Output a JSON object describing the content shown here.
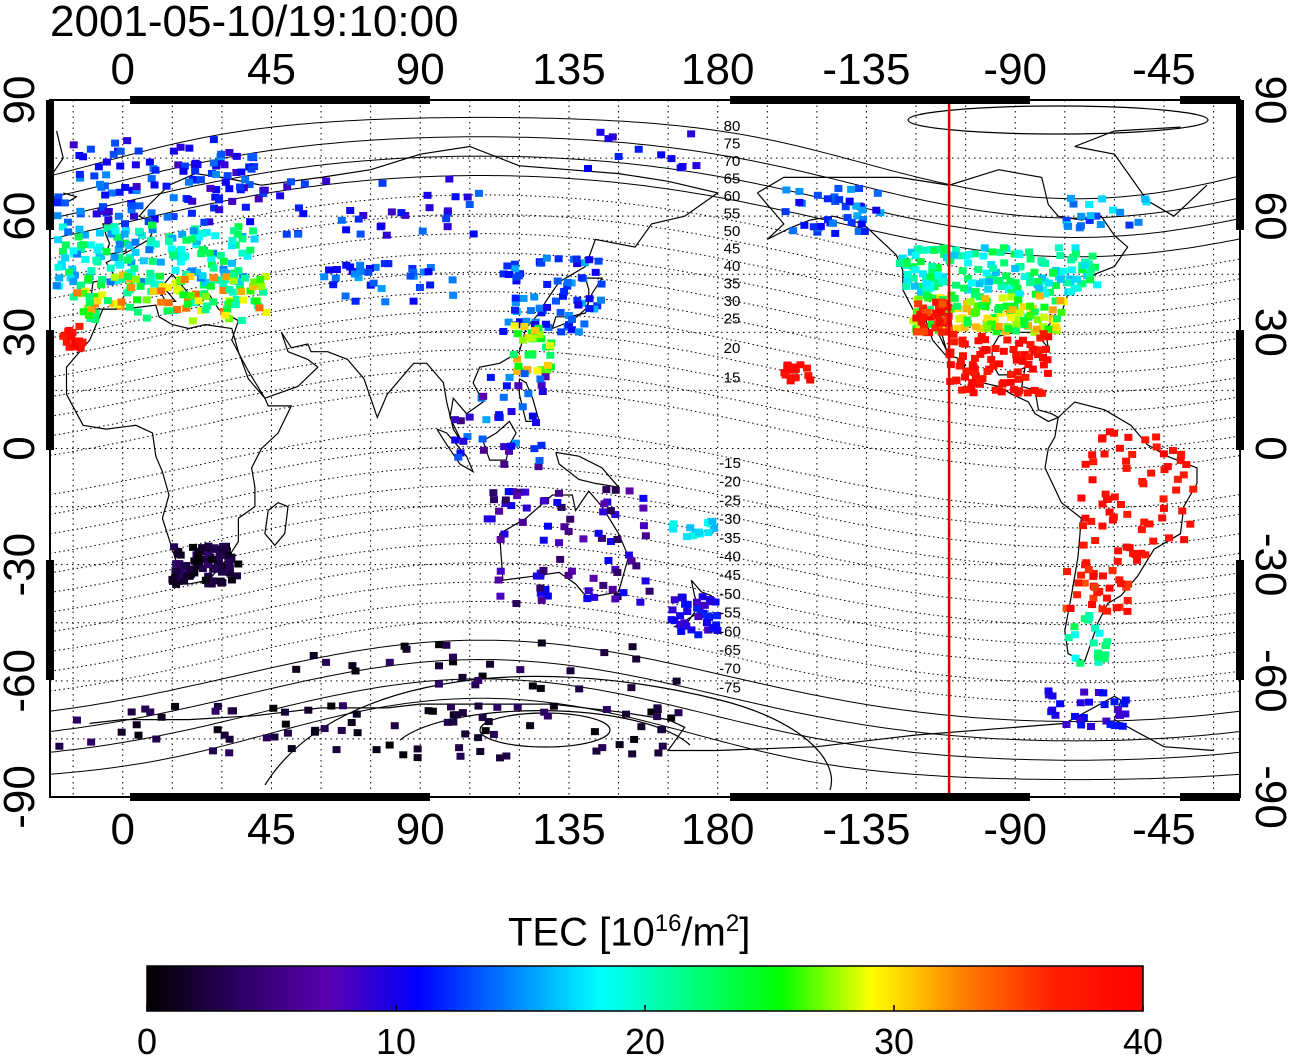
{
  "timestamp": "2001-05-10/19:10:00",
  "map": {
    "x_ticks": [
      "0",
      "45",
      "90",
      "135",
      "180",
      "-135",
      "-90",
      "-45"
    ],
    "y_ticks_left": [
      "90",
      "60",
      "30",
      "0",
      "-30",
      "-60",
      "-90"
    ],
    "y_ticks_right": [
      "90",
      "60",
      "30",
      "0",
      "-30",
      "-60",
      "-90"
    ],
    "magnetic_latitude_labels_north": [
      "80",
      "75",
      "70",
      "65",
      "60",
      "55",
      "50",
      "45",
      "40",
      "35",
      "30",
      "25",
      "20",
      "15"
    ],
    "magnetic_latitude_labels_south": [
      "-15",
      "-20",
      "-25",
      "-30",
      "-35",
      "-40",
      "-45",
      "-50",
      "-55",
      "-60",
      "-65",
      "-70",
      "-75"
    ],
    "terminator_color": "#e00000",
    "terminator_longitude": -110
  },
  "colorbar": {
    "title_main": "TEC  [10",
    "title_exp1": "16",
    "title_mid": "/m",
    "title_exp2": "2",
    "title_end": "]",
    "tick_labels": [
      "0",
      "10",
      "20",
      "30",
      "40"
    ],
    "range": [
      0,
      40
    ],
    "colors": [
      "#000000",
      "#2a0060",
      "#5a00b0",
      "#0000ff",
      "#0080ff",
      "#00ffff",
      "#00ff80",
      "#00ff00",
      "#ffff00",
      "#ff8000",
      "#ff2000",
      "#ff0000"
    ]
  }
}
